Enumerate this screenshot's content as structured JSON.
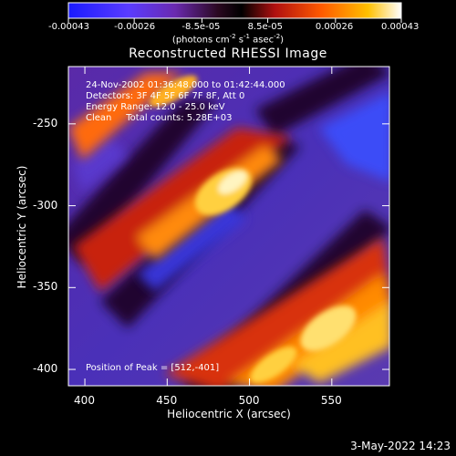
{
  "colorbar": {
    "ticks": [
      "-0.00043",
      "-0.00026",
      "-8.5e-05",
      "8.5e-05",
      "0.00026",
      "0.00043"
    ],
    "units_label": "(photons cm",
    "units_parts": [
      "(photons cm",
      "-2",
      " s",
      "-1",
      " asec",
      "-2",
      ")"
    ],
    "min": -0.00043,
    "max": 0.00043
  },
  "chart_data": {
    "type": "heatmap",
    "title": "Reconstructed RHESSI Image",
    "xlabel": "Heliocentric X (arcsec)",
    "ylabel": "Heliocentric Y (arcsec)",
    "xlim": [
      390,
      585
    ],
    "ylim": [
      -410,
      -215
    ],
    "xticks": [
      400,
      450,
      500,
      550
    ],
    "yticks": [
      -250,
      -300,
      -350,
      -400
    ],
    "xtick_labels": [
      "400",
      "450",
      "500",
      "550"
    ],
    "ytick_labels": [
      "-250",
      "-300",
      "-350",
      "-400"
    ],
    "peak": [
      512,
      -401
    ],
    "annotations": {
      "time": "24-Nov-2002 01:36:48.000 to 01:42:44.000",
      "detectors": "Detectors: 3F 4F 5F 6F 7F 8F, Att 0",
      "energy": "Energy Range: 12.0 - 25.0 keV",
      "clean": "Clean     Total counts: 5.28E+03",
      "peak_text": "Position of Peak = [512,-401]"
    }
  },
  "footer": {
    "date": "3-May-2022 14:23"
  }
}
